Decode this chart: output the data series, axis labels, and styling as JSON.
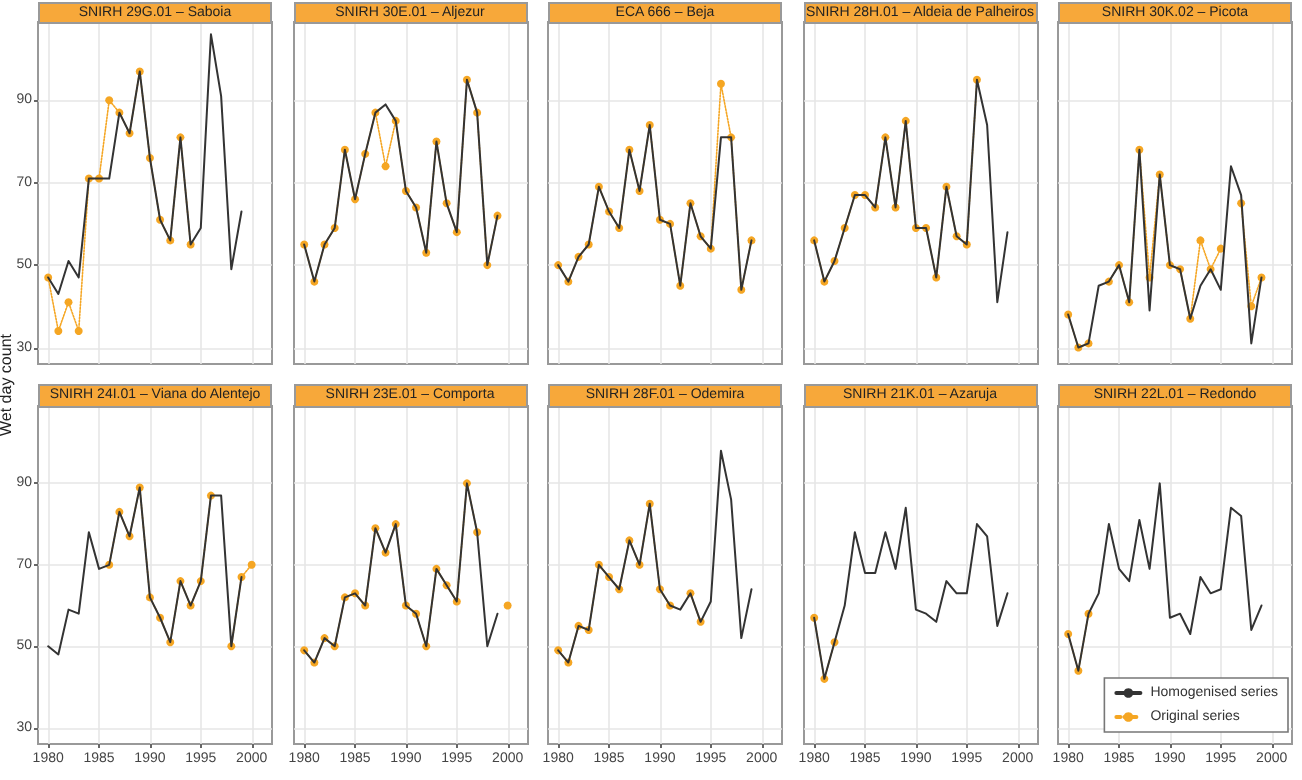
{
  "chart_data": [
    {
      "type": "line",
      "title": "SNIRH 29G.01 – Saboia",
      "ylabel": "Wet day count",
      "x": [
        1980,
        1981,
        1982,
        1983,
        1984,
        1985,
        1986,
        1987,
        1988,
        1989,
        1990,
        1991,
        1992,
        1993,
        1994,
        1995,
        1996,
        1997,
        1998,
        1999
      ],
      "xlim": [
        1979,
        2002
      ],
      "ylim": [
        26,
        109
      ],
      "xticks": [
        1980,
        1985,
        1990,
        1995,
        2000
      ],
      "yticks": [
        30,
        50,
        70,
        90
      ],
      "grid": true,
      "legend": false,
      "tick_labels": "y",
      "series": [
        {
          "color": "#333333",
          "marker": "none",
          "line_style": "solid",
          "values": [
            47,
            43,
            51,
            47,
            71,
            71,
            71,
            87,
            82,
            97,
            76,
            61,
            56,
            81,
            55,
            59,
            106,
            91,
            49,
            63
          ]
        },
        {
          "color": "#f5a623",
          "marker": "circle",
          "line_style": "dotted",
          "values": [
            47,
            34,
            41,
            34,
            71,
            71,
            90,
            87,
            82,
            97,
            76,
            61,
            56,
            81,
            55,
            null,
            null,
            null,
            null,
            null
          ]
        }
      ]
    },
    {
      "type": "line",
      "title": "SNIRH 30E.01 – Aljezur",
      "x": [
        1980,
        1981,
        1982,
        1983,
        1984,
        1985,
        1986,
        1987,
        1988,
        1989,
        1990,
        1991,
        1992,
        1993,
        1994,
        1995,
        1996,
        1997,
        1998,
        1999
      ],
      "xlim": [
        1979,
        2002
      ],
      "ylim": [
        26,
        109
      ],
      "xticks": [
        1980,
        1985,
        1990,
        1995,
        2000
      ],
      "yticks": [
        30,
        50,
        70,
        90
      ],
      "grid": true,
      "legend": false,
      "tick_labels": false,
      "series": [
        {
          "color": "#333333",
          "marker": "none",
          "line_style": "solid",
          "values": [
            55,
            46,
            55,
            59,
            78,
            66,
            77,
            87,
            89,
            85,
            68,
            64,
            53,
            80,
            65,
            58,
            95,
            87,
            50,
            62
          ]
        },
        {
          "color": "#f5a623",
          "marker": "circle",
          "line_style": "dotted",
          "values": [
            55,
            46,
            55,
            59,
            78,
            66,
            77,
            87,
            74,
            85,
            68,
            64,
            53,
            80,
            65,
            58,
            95,
            87,
            50,
            62
          ]
        }
      ]
    },
    {
      "type": "line",
      "title": "ECA 666 – Beja",
      "x": [
        1980,
        1981,
        1982,
        1983,
        1984,
        1985,
        1986,
        1987,
        1988,
        1989,
        1990,
        1991,
        1992,
        1993,
        1994,
        1995,
        1996,
        1997,
        1998,
        1999
      ],
      "xlim": [
        1979,
        2002
      ],
      "ylim": [
        26,
        109
      ],
      "xticks": [
        1980,
        1985,
        1990,
        1995,
        2000
      ],
      "yticks": [
        30,
        50,
        70,
        90
      ],
      "grid": true,
      "legend": false,
      "tick_labels": false,
      "series": [
        {
          "color": "#333333",
          "marker": "none",
          "line_style": "solid",
          "values": [
            50,
            46,
            52,
            55,
            69,
            63,
            59,
            78,
            68,
            84,
            61,
            60,
            45,
            65,
            57,
            54,
            81,
            81,
            44,
            56
          ]
        },
        {
          "color": "#f5a623",
          "marker": "circle",
          "line_style": "dotted",
          "values": [
            50,
            46,
            52,
            55,
            69,
            63,
            59,
            78,
            68,
            84,
            61,
            60,
            45,
            65,
            57,
            54,
            94,
            81,
            44,
            56
          ]
        }
      ]
    },
    {
      "type": "line",
      "title": "SNIRH 28H.01 – Aldeia de Palheiros",
      "x": [
        1980,
        1981,
        1982,
        1983,
        1984,
        1985,
        1986,
        1987,
        1988,
        1989,
        1990,
        1991,
        1992,
        1993,
        1994,
        1995,
        1996,
        1997,
        1998,
        1999
      ],
      "xlim": [
        1979,
        2002
      ],
      "ylim": [
        26,
        109
      ],
      "xticks": [
        1980,
        1985,
        1990,
        1995,
        2000
      ],
      "yticks": [
        30,
        50,
        70,
        90
      ],
      "grid": true,
      "legend": false,
      "tick_labels": false,
      "series": [
        {
          "color": "#333333",
          "marker": "none",
          "line_style": "solid",
          "values": [
            56,
            46,
            51,
            59,
            67,
            67,
            64,
            81,
            64,
            85,
            59,
            59,
            47,
            69,
            57,
            55,
            95,
            84,
            41,
            58
          ]
        },
        {
          "color": "#f5a623",
          "marker": "circle",
          "line_style": "dotted",
          "values": [
            56,
            46,
            51,
            59,
            67,
            67,
            64,
            81,
            64,
            85,
            59,
            59,
            47,
            69,
            57,
            55,
            95,
            null,
            null,
            null
          ]
        }
      ]
    },
    {
      "type": "line",
      "title": "SNIRH 30K.02 – Picota",
      "x": [
        1980,
        1981,
        1982,
        1983,
        1984,
        1985,
        1986,
        1987,
        1988,
        1989,
        1990,
        1991,
        1992,
        1993,
        1994,
        1995,
        1996,
        1997,
        1998,
        1999
      ],
      "xlim": [
        1979,
        2002
      ],
      "ylim": [
        26,
        109
      ],
      "xticks": [
        1980,
        1985,
        1990,
        1995,
        2000
      ],
      "yticks": [
        30,
        50,
        70,
        90
      ],
      "grid": true,
      "legend": false,
      "tick_labels": false,
      "series": [
        {
          "color": "#333333",
          "marker": "none",
          "line_style": "solid",
          "values": [
            38,
            30,
            31,
            45,
            46,
            50,
            41,
            78,
            39,
            72,
            50,
            49,
            37,
            45,
            49,
            44,
            74,
            67,
            31,
            47
          ]
        },
        {
          "color": "#f5a623",
          "marker": "circle",
          "line_style": "dotted",
          "values": [
            38,
            30,
            31,
            null,
            46,
            50,
            41,
            78,
            47,
            72,
            50,
            49,
            37,
            56,
            49,
            54,
            null,
            65,
            40,
            47
          ]
        }
      ]
    },
    {
      "type": "line",
      "title": "SNIRH 24I.01 – Viana do Alentejo",
      "x": [
        1980,
        1981,
        1982,
        1983,
        1984,
        1985,
        1986,
        1987,
        1988,
        1989,
        1990,
        1991,
        1992,
        1993,
        1994,
        1995,
        1996,
        1997,
        1998,
        1999,
        2000
      ],
      "xlim": [
        1979,
        2002
      ],
      "ylim": [
        26,
        109
      ],
      "xticks": [
        1980,
        1985,
        1990,
        1995,
        2000
      ],
      "yticks": [
        30,
        50,
        70,
        90
      ],
      "grid": true,
      "legend": false,
      "series": [
        {
          "color": "#333333",
          "marker": "none",
          "line_style": "solid",
          "values": [
            50,
            48,
            59,
            58,
            78,
            69,
            70,
            83,
            77,
            89,
            62,
            57,
            51,
            66,
            60,
            66,
            87,
            87,
            50,
            67,
            null
          ]
        },
        {
          "color": "#f5a623",
          "marker": "circle",
          "line_style": "dotted",
          "values": [
            null,
            null,
            null,
            null,
            null,
            null,
            70,
            83,
            77,
            89,
            62,
            57,
            51,
            66,
            60,
            66,
            87,
            null,
            50,
            67,
            70
          ]
        }
      ]
    },
    {
      "type": "line",
      "title": "SNIRH 23E.01 – Comporta",
      "x": [
        1980,
        1981,
        1982,
        1983,
        1984,
        1985,
        1986,
        1987,
        1988,
        1989,
        1990,
        1991,
        1992,
        1993,
        1994,
        1995,
        1996,
        1997,
        1998,
        1999,
        2000
      ],
      "xlim": [
        1979,
        2002
      ],
      "ylim": [
        26,
        109
      ],
      "xticks": [
        1980,
        1985,
        1990,
        1995,
        2000
      ],
      "yticks": [
        30,
        50,
        70,
        90
      ],
      "grid": true,
      "legend": false,
      "tick_labels": "x",
      "series": [
        {
          "color": "#333333",
          "marker": "none",
          "line_style": "solid",
          "values": [
            49,
            46,
            52,
            50,
            62,
            63,
            60,
            79,
            73,
            80,
            60,
            58,
            50,
            69,
            65,
            61,
            90,
            78,
            50,
            58,
            null
          ]
        },
        {
          "color": "#f5a623",
          "marker": "circle",
          "line_style": "dotted",
          "values": [
            49,
            46,
            52,
            50,
            62,
            63,
            60,
            79,
            73,
            80,
            60,
            58,
            50,
            69,
            65,
            61,
            90,
            78,
            null,
            null,
            60
          ]
        }
      ]
    },
    {
      "type": "line",
      "title": "SNIRH 28F.01 – Odemira",
      "x": [
        1980,
        1981,
        1982,
        1983,
        1984,
        1985,
        1986,
        1987,
        1988,
        1989,
        1990,
        1991,
        1992,
        1993,
        1994,
        1995,
        1996,
        1997,
        1998,
        1999
      ],
      "xlim": [
        1979,
        2002
      ],
      "ylim": [
        26,
        109
      ],
      "xticks": [
        1980,
        1985,
        1990,
        1995,
        2000
      ],
      "yticks": [
        30,
        50,
        70,
        90
      ],
      "grid": true,
      "legend": false,
      "tick_labels": "x",
      "series": [
        {
          "color": "#333333",
          "marker": "none",
          "line_style": "solid",
          "values": [
            49,
            46,
            55,
            54,
            70,
            67,
            64,
            76,
            70,
            85,
            64,
            60,
            59,
            63,
            56,
            61,
            98,
            86,
            52,
            64
          ]
        },
        {
          "color": "#f5a623",
          "marker": "circle",
          "line_style": "dotted",
          "values": [
            49,
            46,
            55,
            54,
            70,
            67,
            64,
            76,
            70,
            85,
            64,
            60,
            null,
            63,
            56,
            null,
            null,
            null,
            null,
            null
          ]
        }
      ]
    },
    {
      "type": "line",
      "title": "SNIRH 21K.01 – Azaruja",
      "x": [
        1980,
        1981,
        1982,
        1983,
        1984,
        1985,
        1986,
        1987,
        1988,
        1989,
        1990,
        1991,
        1992,
        1993,
        1994,
        1995,
        1996,
        1997,
        1998,
        1999
      ],
      "xlim": [
        1979,
        2002
      ],
      "ylim": [
        26,
        109
      ],
      "xticks": [
        1980,
        1985,
        1990,
        1995,
        2000
      ],
      "yticks": [
        30,
        50,
        70,
        90
      ],
      "grid": true,
      "legend": false,
      "tick_labels": "x",
      "series": [
        {
          "color": "#333333",
          "marker": "none",
          "line_style": "solid",
          "values": [
            57,
            42,
            51,
            60,
            78,
            68,
            68,
            78,
            69,
            84,
            59,
            58,
            56,
            66,
            63,
            63,
            80,
            77,
            55,
            63
          ]
        },
        {
          "color": "#f5a623",
          "marker": "circle",
          "line_style": "dotted",
          "values": [
            57,
            42,
            51,
            null,
            null,
            null,
            null,
            null,
            null,
            null,
            null,
            null,
            null,
            null,
            null,
            null,
            null,
            null,
            null,
            null
          ]
        }
      ]
    },
    {
      "type": "line",
      "title": "SNIRH 22L.01 – Redondo",
      "x": [
        1980,
        1981,
        1982,
        1983,
        1984,
        1985,
        1986,
        1987,
        1988,
        1989,
        1990,
        1991,
        1992,
        1993,
        1994,
        1995,
        1996,
        1997,
        1998,
        1999
      ],
      "xlim": [
        1979,
        2002
      ],
      "ylim": [
        26,
        109
      ],
      "xticks": [
        1980,
        1985,
        1990,
        1995,
        2000
      ],
      "yticks": [
        30,
        50,
        70,
        90
      ],
      "grid": true,
      "legend": "bottom right",
      "tick_labels": "x",
      "series": [
        {
          "name": "Homogenised series",
          "color": "#333333",
          "marker": "none",
          "line_style": "solid",
          "values": [
            53,
            44,
            58,
            63,
            80,
            69,
            66,
            81,
            69,
            90,
            57,
            58,
            53,
            67,
            63,
            64,
            84,
            82,
            54,
            60
          ]
        },
        {
          "name": "Original series",
          "color": "#f5a623",
          "marker": "circle",
          "line_style": "dotted",
          "values": [
            53,
            44,
            58,
            null,
            null,
            null,
            null,
            null,
            null,
            null,
            null,
            null,
            null,
            null,
            null,
            null,
            null,
            null,
            null,
            null
          ]
        }
      ]
    }
  ]
}
